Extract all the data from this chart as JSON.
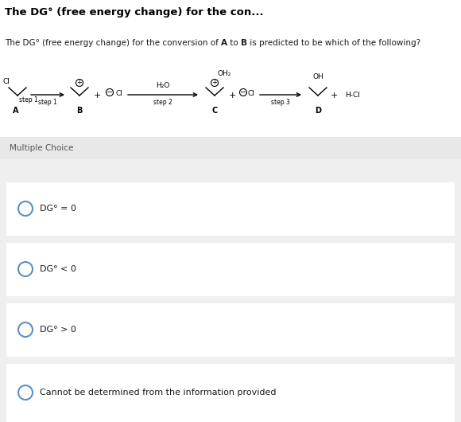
{
  "title": "The DG° (free energy change) for the con...",
  "section_label": "Multiple Choice",
  "choices": [
    "DG° = 0",
    "DG° < 0",
    "DG° > 0",
    "Cannot be determined from the information provided"
  ],
  "bg_color": "#efefef",
  "white": "#ffffff",
  "circle_color": "#5b8fc9",
  "text_color": "#1a1a1a",
  "title_color": "#000000",
  "mc_bg": "#e8e8e8",
  "divider_color": "#d8d8d8",
  "title_bg": "#ffffff",
  "question_bg": "#ffffff"
}
